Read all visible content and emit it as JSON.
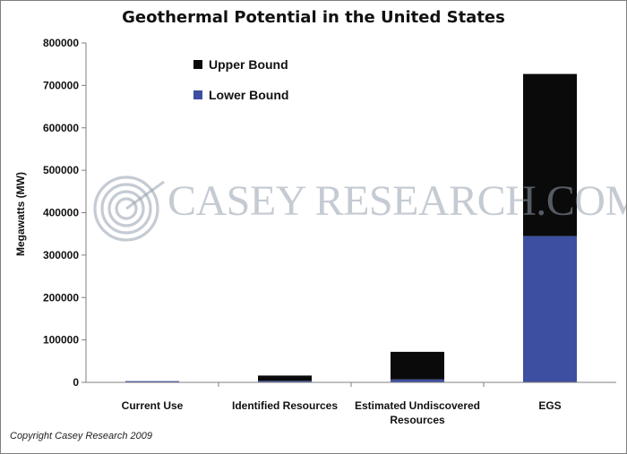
{
  "chart_data": {
    "type": "bar",
    "stacked": true,
    "title": "Geothermal Potential in the United States",
    "xlabel": "",
    "ylabel": "Megawatts (MW)",
    "ylim": [
      0,
      800000
    ],
    "yticks": [
      0,
      100000,
      200000,
      300000,
      400000,
      500000,
      600000,
      700000,
      800000
    ],
    "grid": false,
    "legend_position": "top-left",
    "categories": [
      [
        "Current Use"
      ],
      [
        "Identified Resources"
      ],
      [
        "Estimated Undiscovered",
        "Resources"
      ],
      [
        "EGS"
      ]
    ],
    "series": [
      {
        "name": "Lower Bound",
        "color": "#3c4fa0",
        "values": [
          3000,
          3500,
          7000,
          345000
        ]
      },
      {
        "name": "Upper Bound",
        "color": "#0a0a0a",
        "values": [
          0,
          12500,
          65000,
          382000
        ]
      }
    ],
    "legend_order": [
      "Upper Bound",
      "Lower Bound"
    ]
  },
  "watermark": {
    "text": "CASEY RESEARCH.COM",
    "color": "#9aa3b5"
  },
  "copyright": "Copyright Casey Research 2009"
}
